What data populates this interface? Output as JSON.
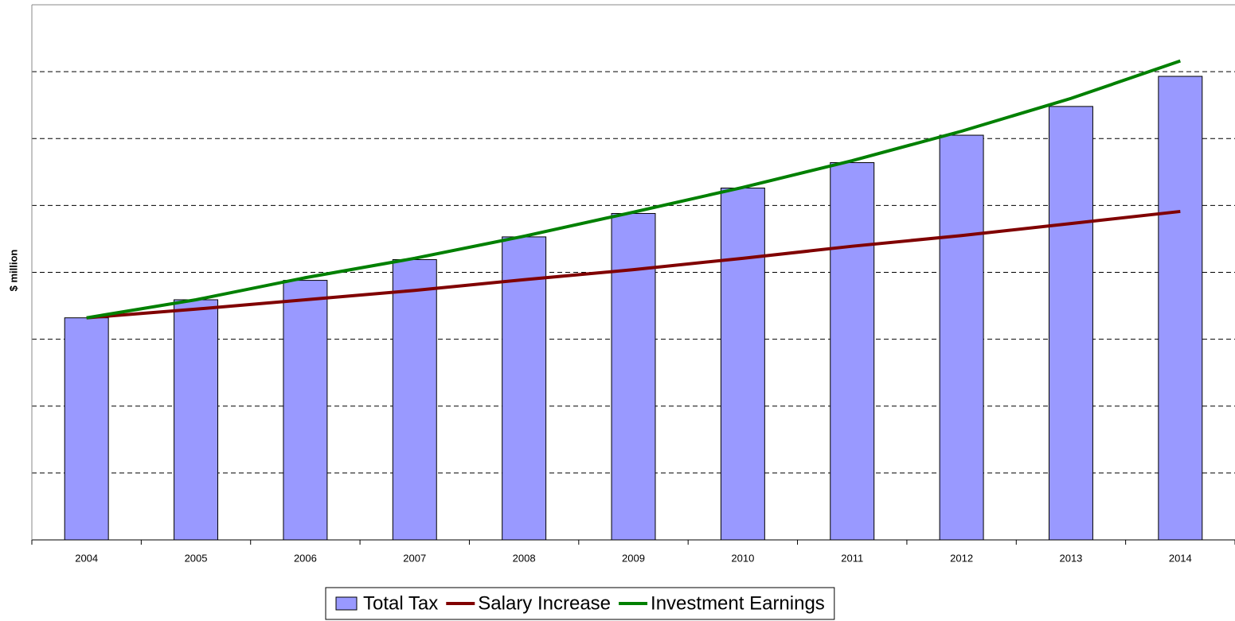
{
  "chart_data": {
    "type": "bar",
    "y_label": "$ million",
    "categories": [
      "2004",
      "2005",
      "2006",
      "2007",
      "2008",
      "2009",
      "2010",
      "2011",
      "2012",
      "2013",
      "2014"
    ],
    "series": [
      {
        "name": "Total Tax",
        "type": "bar",
        "color": "#9999ff",
        "values": [
          3.32,
          3.59,
          3.88,
          4.19,
          4.53,
          4.88,
          5.26,
          5.64,
          6.05,
          6.48,
          6.93
        ]
      },
      {
        "name": "Salary Increase",
        "type": "line",
        "color": "#800000",
        "values": [
          3.32,
          3.45,
          3.59,
          3.73,
          3.89,
          4.04,
          4.21,
          4.39,
          4.55,
          4.73,
          4.91
        ]
      },
      {
        "name": "Investment Earnings",
        "type": "line",
        "color": "#008000",
        "values": [
          3.32,
          3.59,
          3.92,
          4.21,
          4.54,
          4.9,
          5.27,
          5.67,
          6.11,
          6.6,
          7.16
        ]
      }
    ],
    "ylim": [
      0,
      8
    ],
    "yticks": [
      0,
      1,
      2,
      3,
      4,
      5,
      6,
      7,
      8
    ],
    "grid": true,
    "legend": "bottom"
  }
}
